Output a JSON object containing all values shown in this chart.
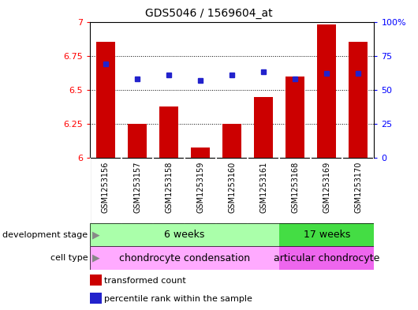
{
  "title": "GDS5046 / 1569604_at",
  "samples": [
    "GSM1253156",
    "GSM1253157",
    "GSM1253158",
    "GSM1253159",
    "GSM1253160",
    "GSM1253161",
    "GSM1253168",
    "GSM1253169",
    "GSM1253170"
  ],
  "bar_values": [
    6.85,
    6.25,
    6.38,
    6.08,
    6.25,
    6.45,
    6.6,
    6.98,
    6.85
  ],
  "dot_values": [
    6.69,
    6.58,
    6.61,
    6.57,
    6.61,
    6.63,
    6.58,
    6.62,
    6.62
  ],
  "ylim_left": [
    6.0,
    7.0
  ],
  "yticks_left": [
    6.0,
    6.25,
    6.5,
    6.75,
    7.0
  ],
  "ytick_labels_left": [
    "6",
    "6.25",
    "6.5",
    "6.75",
    "7"
  ],
  "yticks_right_pct": [
    0,
    25,
    50,
    75,
    100
  ],
  "ytick_labels_right": [
    "0",
    "25",
    "50",
    "75",
    "100%"
  ],
  "bar_color": "#cc0000",
  "dot_color": "#2222cc",
  "bar_width": 0.6,
  "n_group1": 6,
  "n_group2": 3,
  "dev_stage_label1": "6 weeks",
  "dev_stage_label2": "17 weeks",
  "cell_type_label1": "chondrocyte condensation",
  "cell_type_label2": "articular chondrocyte",
  "row_label_dev": "development stage",
  "row_label_cell": "cell type",
  "legend_bar": "transformed count",
  "legend_dot": "percentile rank within the sample",
  "dev_color1": "#aaffaa",
  "dev_color2": "#44dd44",
  "cell_color1": "#ffaaff",
  "cell_color2": "#ee66ee",
  "tick_bg": "#cccccc",
  "bg_color": "#ffffff",
  "title_fontsize": 10,
  "tick_fontsize": 8,
  "annot_fontsize": 9,
  "legend_fontsize": 8
}
